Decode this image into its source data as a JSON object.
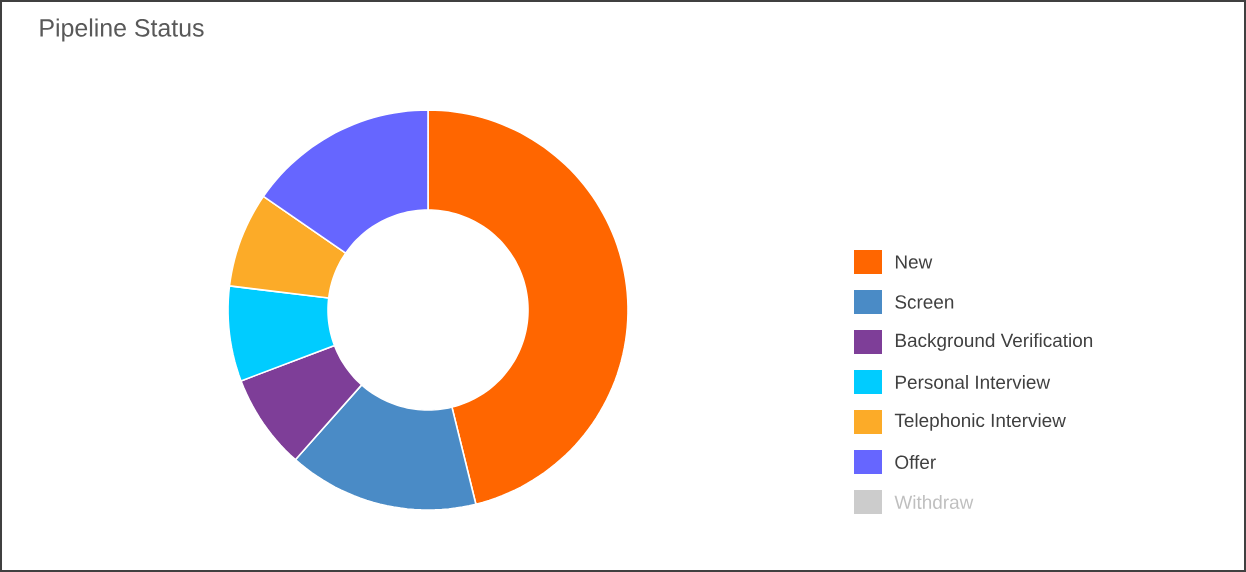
{
  "chart_data": {
    "type": "donut",
    "title": "Pipeline Status",
    "categories": [
      "New",
      "Screen",
      "Background Verification",
      "Personal Interview",
      "Telephonic Interview",
      "Offer",
      "Withdraw"
    ],
    "values": [
      46.2,
      15.4,
      7.7,
      7.7,
      7.7,
      15.4,
      0
    ],
    "colors": [
      "#ff6600",
      "#4a8bc6",
      "#7e3e98",
      "#00ccff",
      "#fcab28",
      "#6666ff",
      "#cccccc"
    ],
    "legend": "right"
  }
}
